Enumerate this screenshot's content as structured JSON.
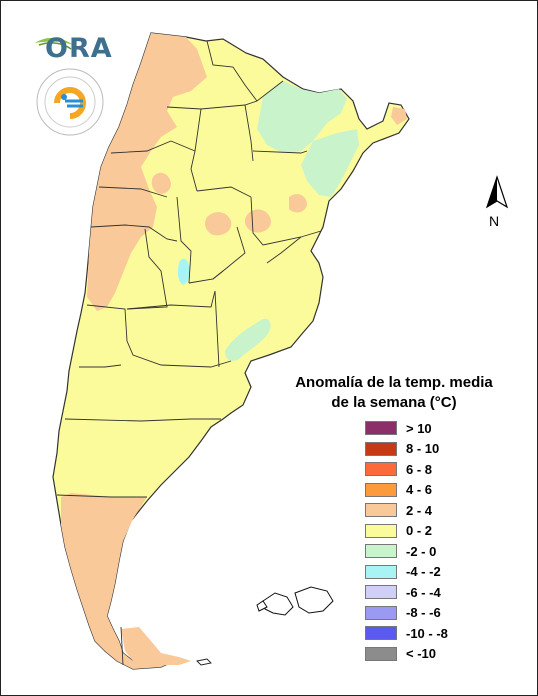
{
  "logos": {
    "ora_text": "ORA",
    "smn_text": "SERVICIO METEOROLÓGICO NACIONAL ARGENTINA",
    "ora_icon": "leaf-icon",
    "smn_icon": "smn-seal-icon"
  },
  "north_arrow": {
    "label": "N",
    "icon": "north-arrow-icon"
  },
  "map": {
    "colors": {
      "cat_2_4": "#f9c99a",
      "cat_0_2": "#fbfb9c",
      "cat_m2_0": "#c9f3cb",
      "cat_m4_m2": "#a8f4f4",
      "border": "#333333"
    }
  },
  "legend": {
    "title_line1": "Anomalía de la temp. media",
    "title_line2": "de la semana (°C)",
    "items": [
      {
        "label": "> 10",
        "color": "#8b2e6a"
      },
      {
        "label": "8 - 10",
        "color": "#c53a14"
      },
      {
        "label": "6 - 8",
        "color": "#fc6a3a"
      },
      {
        "label": "4 - 6",
        "color": "#fc9a3c"
      },
      {
        "label": "2 - 4",
        "color": "#f9c99a"
      },
      {
        "label": "0 - 2",
        "color": "#fbfb9c"
      },
      {
        "label": "-2 - 0",
        "color": "#c9f3cb"
      },
      {
        "label": "-4 - -2",
        "color": "#a8f4f4"
      },
      {
        "label": "-6 - -4",
        "color": "#cfcff7"
      },
      {
        "label": "-8 - -6",
        "color": "#9a9af2"
      },
      {
        "label": "-10 - -8",
        "color": "#5a5af0"
      },
      {
        "label": "< -10",
        "color": "#8c8c8c"
      }
    ]
  }
}
